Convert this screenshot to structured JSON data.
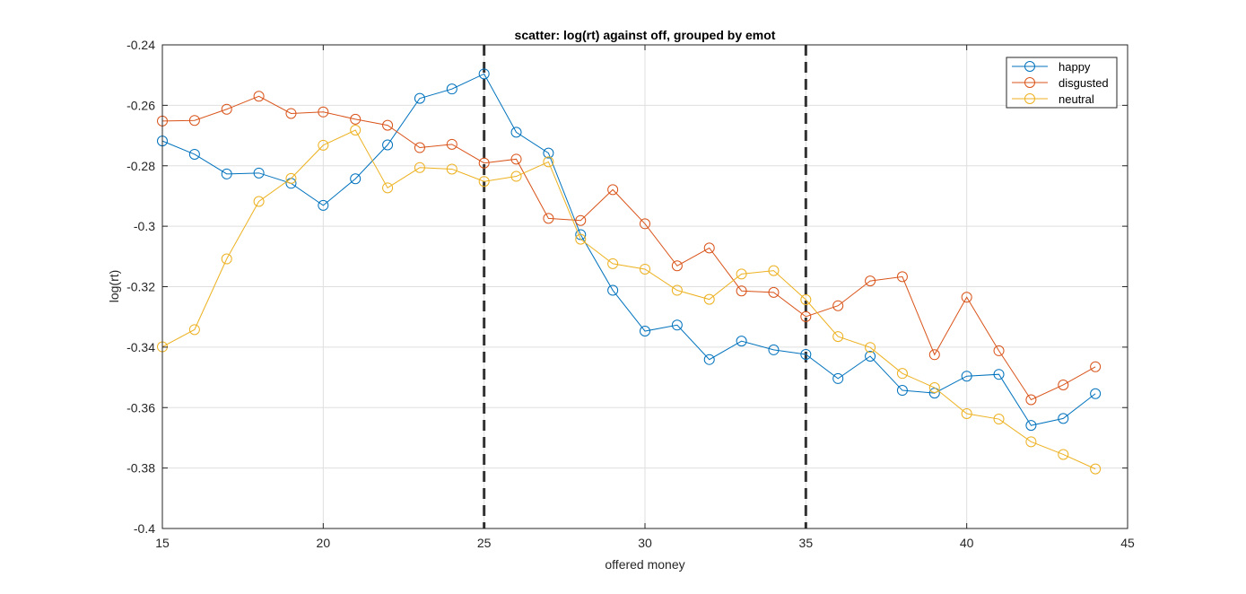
{
  "chart_data": {
    "type": "line",
    "title": "scatter: log(rt) against off, grouped by emot",
    "xlabel": "offered money",
    "ylabel": "log(rt)",
    "xlim": [
      15,
      45
    ],
    "ylim": [
      -0.4,
      -0.24
    ],
    "x_ticks": [
      15,
      20,
      25,
      30,
      35,
      40,
      45
    ],
    "x_tick_labels": [
      "15",
      "20",
      "25",
      "30",
      "35",
      "40",
      "45"
    ],
    "y_ticks": [
      -0.4,
      -0.38,
      -0.36,
      -0.34,
      -0.32,
      -0.3,
      -0.28,
      -0.26,
      -0.24
    ],
    "y_tick_labels": [
      "-0.4",
      "-0.38",
      "-0.36",
      "-0.34",
      "-0.32",
      "-0.3",
      "-0.28",
      "-0.26",
      "-0.24"
    ],
    "grid": true,
    "legend_position": "top-right",
    "marker": "circle",
    "vertical_lines": [
      25,
      35
    ],
    "x": [
      15,
      16,
      17,
      18,
      19,
      20,
      21,
      22,
      23,
      24,
      25,
      26,
      27,
      28,
      29,
      30,
      31,
      32,
      33,
      34,
      35,
      36,
      37,
      38,
      39,
      40,
      41,
      42,
      43,
      44
    ],
    "series": [
      {
        "name": "happy",
        "color": "#0072BD",
        "values": [
          -0.2718,
          -0.2762,
          -0.2827,
          -0.2824,
          -0.2858,
          -0.2931,
          -0.2843,
          -0.2731,
          -0.2577,
          -0.2546,
          -0.2496,
          -0.2689,
          -0.2758,
          -0.3028,
          -0.3212,
          -0.3347,
          -0.3327,
          -0.3441,
          -0.338,
          -0.3409,
          -0.3424,
          -0.3504,
          -0.343,
          -0.3543,
          -0.3552,
          -0.3496,
          -0.349,
          -0.3659,
          -0.3636,
          -0.3554
        ]
      },
      {
        "name": "disgusted",
        "color": "#D95319",
        "values": [
          -0.2652,
          -0.265,
          -0.2613,
          -0.257,
          -0.2627,
          -0.2622,
          -0.2646,
          -0.2666,
          -0.274,
          -0.2729,
          -0.2791,
          -0.2778,
          -0.2974,
          -0.2981,
          -0.2879,
          -0.2992,
          -0.3131,
          -0.3072,
          -0.3214,
          -0.3219,
          -0.3299,
          -0.3263,
          -0.3181,
          -0.3167,
          -0.3425,
          -0.3235,
          -0.3412,
          -0.3574,
          -0.3525,
          -0.3465
        ]
      },
      {
        "name": "neutral",
        "color": "#EDB120",
        "values": [
          -0.3399,
          -0.3342,
          -0.3108,
          -0.2918,
          -0.2842,
          -0.2732,
          -0.2682,
          -0.2873,
          -0.2806,
          -0.2811,
          -0.2852,
          -0.2835,
          -0.2787,
          -0.3043,
          -0.3124,
          -0.3142,
          -0.3212,
          -0.3242,
          -0.3158,
          -0.3147,
          -0.3243,
          -0.3365,
          -0.3401,
          -0.3487,
          -0.3534,
          -0.362,
          -0.3638,
          -0.3713,
          -0.3755,
          -0.3803
        ]
      }
    ]
  }
}
